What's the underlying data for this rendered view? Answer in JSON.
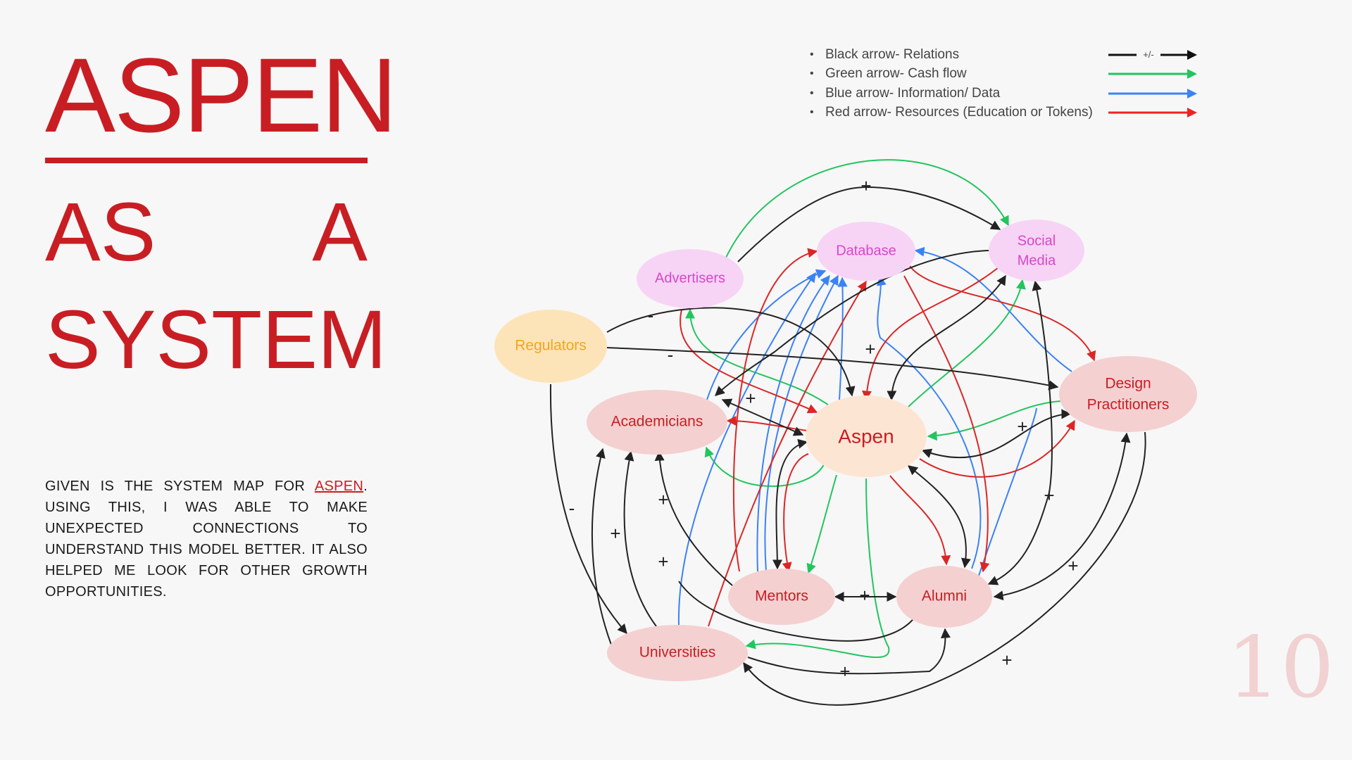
{
  "title": {
    "main": "ASPEN",
    "sub_left": "AS",
    "sub_right": "A",
    "sub_line2": "SYSTEM"
  },
  "description": {
    "before_link": "GIVEN IS THE SYSTEM MAP FOR ",
    "link": "ASPEN",
    "after_link": ". USING THIS, I WAS ABLE TO MAKE UNEXPECTED CONNECTIONS TO UNDERSTAND THIS MODEL BETTER. IT ALSO HELPED ME LOOK FOR OTHER GROWTH OPPORTUNITIES."
  },
  "legend": {
    "items": [
      {
        "bullet": "•",
        "text": "Black arrow- Relations",
        "color": "#111111",
        "arrow_label": "+/-"
      },
      {
        "bullet": "•",
        "text": "Green arrow- Cash flow",
        "color": "#22c55e",
        "arrow_label": ""
      },
      {
        "bullet": "•",
        "text": "Blue arrow- Information/ Data",
        "color": "#3b82f6",
        "arrow_label": ""
      },
      {
        "bullet": "•",
        "text": "Red arrow- Resources (Education or Tokens)",
        "color": "#ef2323",
        "arrow_label": ""
      }
    ]
  },
  "nodes": {
    "aspen": {
      "label": "Aspen",
      "fill": "#fde5d4",
      "text_color": "#c81e23"
    },
    "database": {
      "label": "Database",
      "fill": "#f7d4f5",
      "text_color": "#d946c9"
    },
    "social_media": {
      "label_line1": "Social",
      "label_line2": "Media",
      "fill": "#f7d4f5",
      "text_color": "#d946c9"
    },
    "advertisers": {
      "label": "Advertisers",
      "fill": "#f7d4f5",
      "text_color": "#d946c9"
    },
    "regulators": {
      "label": "Regulators",
      "fill": "#fde4b8",
      "text_color": "#f5a51f"
    },
    "academicians": {
      "label": "Academicians",
      "fill": "#f5d0d0",
      "text_color": "#c81e23"
    },
    "design": {
      "label_line1": "Design",
      "label_line2": "Practitioners",
      "fill": "#f5d0d0",
      "text_color": "#c81e23"
    },
    "mentors": {
      "label": "Mentors",
      "fill": "#f5d0d0",
      "text_color": "#c81e23"
    },
    "alumni": {
      "label": "Alumni",
      "fill": "#f5d0d0",
      "text_color": "#c81e23"
    },
    "universities": {
      "label": "Universities",
      "fill": "#f5d0d0",
      "text_color": "#c81e23"
    }
  },
  "signs": {
    "plus": "+",
    "minus": "-"
  },
  "colors": {
    "black": "#222222",
    "green": "#22c55e",
    "blue": "#3b82f6",
    "red": "#dc2626",
    "accent": "#c81e23"
  },
  "page_number": "10"
}
